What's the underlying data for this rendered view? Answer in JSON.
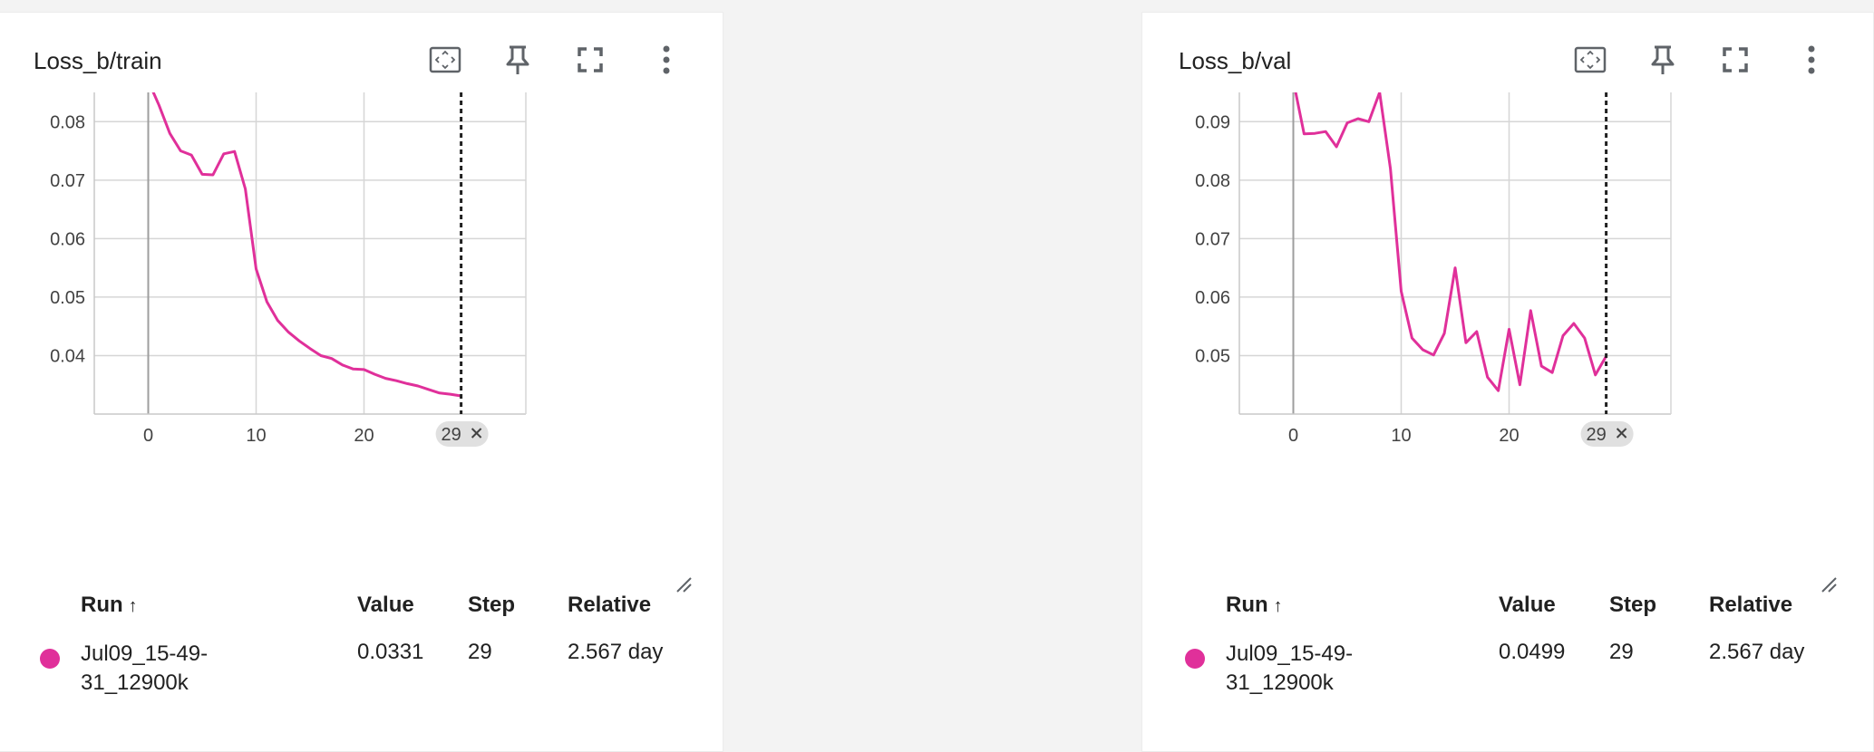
{
  "accent_color": "#e0309a",
  "icons": {
    "fit": "fit-to-domain-icon",
    "pin": "pin-icon",
    "fullscreen": "fullscreen-icon",
    "menu": "more-vertical-icon"
  },
  "cards": [
    {
      "title": "Loss_b/train",
      "cursor_step_label": "29",
      "legend": {
        "headers": {
          "run": "Run",
          "value": "Value",
          "step": "Step",
          "relative": "Relative"
        },
        "run_name": "Jul09_15-49-31_12900k",
        "run_name_line1": "Jul09_15-49-",
        "run_name_line2": "31_12900k",
        "value": "0.0331",
        "step": "29",
        "relative": "2.567 day"
      }
    },
    {
      "title": "Loss_b/val",
      "cursor_step_label": "29",
      "legend": {
        "headers": {
          "run": "Run",
          "value": "Value",
          "step": "Step",
          "relative": "Relative"
        },
        "run_name": "Jul09_15-49-31_12900k",
        "run_name_line1": "Jul09_15-49-",
        "run_name_line2": "31_12900k",
        "value": "0.0499",
        "step": "29",
        "relative": "2.567 day"
      }
    }
  ],
  "chart_data": [
    {
      "type": "line",
      "title": "Loss_b/train",
      "xlabel": "",
      "ylabel": "",
      "xlim": [
        -5,
        35
      ],
      "ylim": [
        0.03,
        0.085
      ],
      "xticks": [
        0,
        10,
        20
      ],
      "yticks": [
        0.04,
        0.05,
        0.06,
        0.07,
        0.08
      ],
      "ytick_labels": [
        "0.04",
        "0.05",
        "0.06",
        "0.07",
        "0.08"
      ],
      "cursor_step": 29,
      "grid": true,
      "series": [
        {
          "color": "#e0309a",
          "x": [
            0,
            1,
            2,
            3,
            4,
            5,
            6,
            7,
            8,
            9,
            10,
            11,
            12,
            13,
            14,
            15,
            16,
            17,
            18,
            19,
            20,
            21,
            22,
            23,
            24,
            25,
            26,
            27,
            28,
            29
          ],
          "y": [
            0.087,
            0.0828,
            0.078,
            0.075,
            0.0743,
            0.071,
            0.0709,
            0.0745,
            0.0749,
            0.0685,
            0.0548,
            0.0492,
            0.046,
            0.044,
            0.0425,
            0.0412,
            0.04,
            0.0395,
            0.0384,
            0.0377,
            0.0376,
            0.0368,
            0.0361,
            0.0357,
            0.0352,
            0.0348,
            0.0342,
            0.0336,
            0.0334,
            0.0331
          ]
        }
      ]
    },
    {
      "type": "line",
      "title": "Loss_b/val",
      "xlabel": "",
      "ylabel": "",
      "xlim": [
        -5,
        35
      ],
      "ylim": [
        0.04,
        0.095
      ],
      "xticks": [
        0,
        10,
        20
      ],
      "yticks": [
        0.05,
        0.06,
        0.07,
        0.08,
        0.09
      ],
      "ytick_labels": [
        "0.05",
        "0.06",
        "0.07",
        "0.08",
        "0.09"
      ],
      "cursor_step": 29,
      "grid": true,
      "series": [
        {
          "color": "#e0309a",
          "x": [
            0,
            1,
            2,
            3,
            4,
            5,
            6,
            7,
            8,
            9,
            10,
            11,
            12,
            13,
            14,
            15,
            16,
            17,
            18,
            19,
            20,
            21,
            22,
            23,
            24,
            25,
            26,
            27,
            28,
            29
          ],
          "y": [
            0.097,
            0.0879,
            0.088,
            0.0883,
            0.0857,
            0.0898,
            0.0905,
            0.09,
            0.095,
            0.082,
            0.061,
            0.053,
            0.051,
            0.0501,
            0.0538,
            0.065,
            0.0522,
            0.0541,
            0.0463,
            0.044,
            0.0545,
            0.045,
            0.0577,
            0.0482,
            0.0471,
            0.0534,
            0.0555,
            0.053,
            0.0467,
            0.0499
          ]
        }
      ]
    }
  ]
}
